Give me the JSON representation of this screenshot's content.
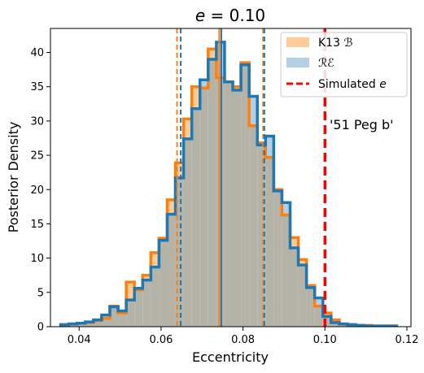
{
  "chart_data": {
    "type": "histogram",
    "title": "e = 0.10",
    "xlabel": "Eccentricity",
    "ylabel": "Posterior Density",
    "xlim": [
      0.033,
      0.121
    ],
    "ylim": [
      0,
      43.5
    ],
    "xticks": [
      0.04,
      0.06,
      0.08,
      0.1,
      0.12
    ],
    "xtick_labels": [
      "0.04",
      "0.06",
      "0.08",
      "0.10",
      "0.12"
    ],
    "yticks": [
      0,
      5,
      10,
      15,
      20,
      25,
      30,
      35,
      40
    ],
    "ytick_labels": [
      "0",
      "5",
      "10",
      "15",
      "20",
      "25",
      "30",
      "35",
      "40"
    ],
    "annotation": "'51 Peg b'",
    "simulated_e": 0.1,
    "legend_position": "upper right",
    "colors": {
      "orange": "#ff7f0e",
      "orange_fill": "#ffcc99",
      "blue": "#1f77b4",
      "blue_fill": "#b3cfe6",
      "overlap_fill": "#b3b3a8",
      "red": "#ff0000"
    },
    "series": [
      {
        "name": "K13 ℬ",
        "edges": [
          0.0355,
          0.0375,
          0.0395,
          0.0415,
          0.0435,
          0.0455,
          0.0475,
          0.0495,
          0.0515,
          0.0535,
          0.0555,
          0.0575,
          0.0595,
          0.0615,
          0.0635,
          0.0655,
          0.0675,
          0.0695,
          0.0715,
          0.0735,
          0.0755,
          0.0775,
          0.0795,
          0.0815,
          0.0835,
          0.0855,
          0.0875,
          0.0895,
          0.0915,
          0.0935,
          0.0955,
          0.0975,
          0.0995,
          0.1015,
          0.1035,
          0.1055,
          0.1075,
          0.1095,
          0.1115,
          0.1135,
          0.1155,
          0.1175
        ],
        "values": [
          0.3,
          0.4,
          0.5,
          0.6,
          0.9,
          1.2,
          3.0,
          2.0,
          6.5,
          5.4,
          7.5,
          10.8,
          12.9,
          18.5,
          23.9,
          30.3,
          35.0,
          34.8,
          40.5,
          36.3,
          35.7,
          35.0,
          38.5,
          29.3,
          26.8,
          24.7,
          20.0,
          16.3,
          13.0,
          9.8,
          6.0,
          3.0,
          2.0,
          1.0,
          0.4,
          0.3,
          0.2,
          0.2,
          0.1,
          0.1,
          0.1
        ]
      },
      {
        "name": "ℛℰ",
        "edges": [
          0.0355,
          0.0375,
          0.0395,
          0.0415,
          0.0435,
          0.0455,
          0.0475,
          0.0495,
          0.0515,
          0.0535,
          0.0555,
          0.0575,
          0.0595,
          0.0615,
          0.0635,
          0.0655,
          0.0675,
          0.0695,
          0.0715,
          0.0735,
          0.0755,
          0.0775,
          0.0795,
          0.0815,
          0.0835,
          0.0855,
          0.0875,
          0.0895,
          0.0915,
          0.0935,
          0.0955,
          0.0975,
          0.0995,
          0.1015,
          0.1035,
          0.1055,
          0.1075,
          0.1095,
          0.1115,
          0.1135,
          0.1155,
          0.1175
        ],
        "values": [
          0.3,
          0.4,
          0.5,
          0.7,
          1.0,
          1.7,
          2.9,
          2.3,
          3.9,
          5.6,
          6.8,
          8.7,
          12.6,
          16.4,
          21.7,
          27.4,
          31.8,
          36.0,
          39.0,
          41.5,
          35.7,
          34.5,
          38.2,
          33.6,
          26.5,
          27.8,
          19.8,
          18.1,
          11.5,
          9.0,
          5.7,
          4.2,
          1.5,
          0.6,
          0.4,
          0.3,
          0.2,
          0.1,
          0.1,
          0.1,
          0.1
        ]
      }
    ],
    "vlines": {
      "orange": {
        "median": 0.0742,
        "lower": 0.0639,
        "upper": 0.0849
      },
      "blue": {
        "median": 0.0747,
        "lower": 0.0648,
        "upper": 0.0852
      }
    },
    "legend": [
      {
        "label": "K13 ℬ",
        "kind": "orange-patch"
      },
      {
        "label": "ℛℰ",
        "kind": "blue-patch"
      },
      {
        "label": "Simulated e",
        "kind": "red-dashed"
      }
    ]
  }
}
